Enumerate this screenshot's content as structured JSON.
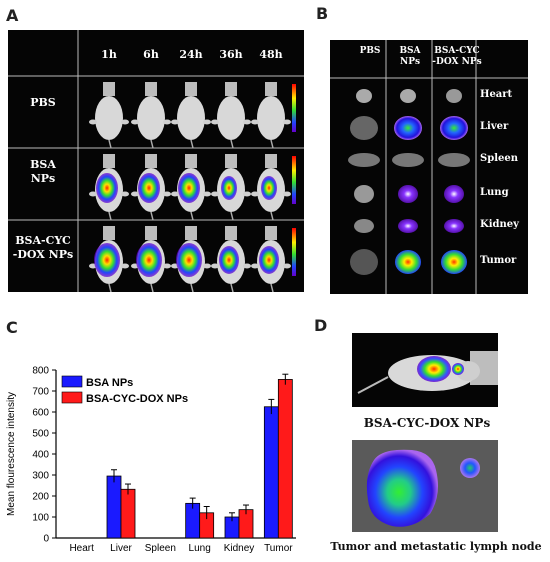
{
  "panels": {
    "A": {
      "letter": "A",
      "time_headers": [
        "1h",
        "6h",
        "24h",
        "36h",
        "48h"
      ],
      "row_labels": [
        "PBS",
        "BSA\nNPs",
        "BSA-CYC\n-DOX NPs"
      ]
    },
    "B": {
      "letter": "B",
      "column_headers": [
        "PBS",
        "BSA\nNPs",
        "BSA-CYC\n-DOX NPs"
      ],
      "organs": [
        "Heart",
        "Liver",
        "Spleen",
        "Lung",
        "Kidney",
        "Tumor"
      ]
    },
    "C": {
      "letter": "C"
    },
    "D": {
      "letter": "D",
      "caption_top": "BSA-CYC-DOX NPs",
      "caption_bottom": "Tumor and metastatic lymph node"
    }
  },
  "chart_data": {
    "type": "bar",
    "categories": [
      "Heart",
      "Liver",
      "Spleen",
      "Lung",
      "Kidney",
      "Tumor"
    ],
    "series": [
      {
        "name": "BSA NPs",
        "color": "#1a1aff",
        "values": [
          0,
          295,
          0,
          165,
          100,
          625
        ],
        "errors": [
          0,
          30,
          0,
          25,
          20,
          35
        ]
      },
      {
        "name": "BSA-CYC-DOX NPs",
        "color": "#ff1a1a",
        "values": [
          0,
          232,
          0,
          120,
          135,
          755
        ],
        "errors": [
          0,
          25,
          0,
          30,
          22,
          25
        ]
      }
    ],
    "ylabel": "Mean flourescence intensity",
    "ylim": [
      0,
      800
    ],
    "yticks": [
      0,
      100,
      200,
      300,
      400,
      500,
      600,
      700,
      800
    ],
    "legend_position": "top-left"
  }
}
